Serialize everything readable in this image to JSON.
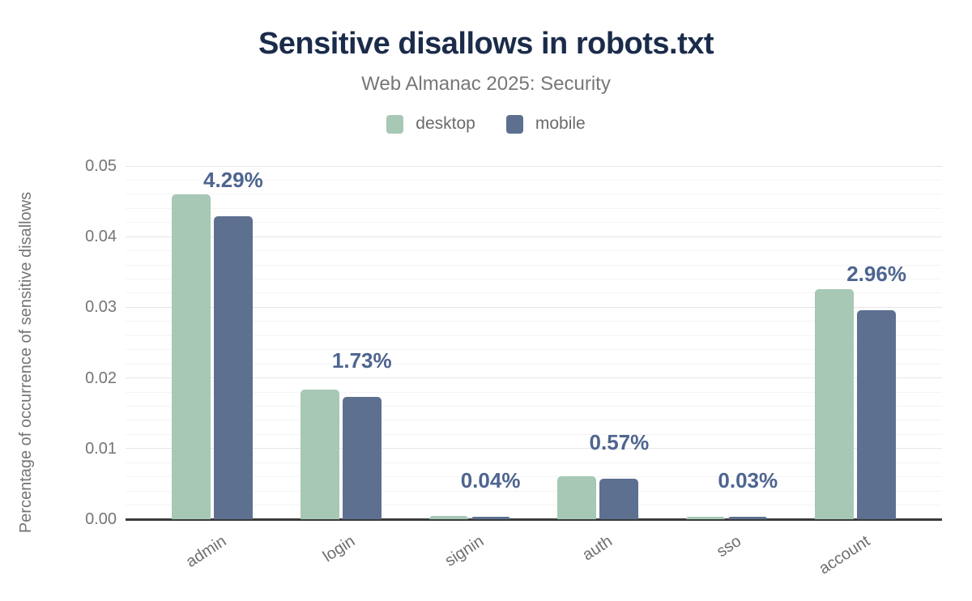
{
  "header": {
    "title": "Sensitive disallows in robots.txt",
    "subtitle": "Web Almanac 2025: Security"
  },
  "legend": {
    "items": [
      {
        "label": "desktop",
        "color": "#a6c8b5"
      },
      {
        "label": "mobile",
        "color": "#5d7090"
      }
    ]
  },
  "chart_data": {
    "type": "bar",
    "title": "Sensitive disallows in robots.txt",
    "subtitle": "Web Almanac 2025: Security",
    "categories": [
      "admin",
      "login",
      "signin",
      "auth",
      "sso",
      "account"
    ],
    "series": [
      {
        "name": "desktop",
        "color": "#a6c8b5",
        "values": [
          0.046,
          0.0183,
          0.0005,
          0.0061,
          0.0003,
          0.0326
        ]
      },
      {
        "name": "mobile",
        "color": "#5d7090",
        "values": [
          0.0429,
          0.0173,
          0.0004,
          0.0057,
          0.0003,
          0.0296
        ]
      }
    ],
    "annotations": {
      "series": "mobile",
      "labels": [
        "4.29%",
        "1.73%",
        "0.04%",
        "0.57%",
        "0.03%",
        "2.96%"
      ]
    },
    "xlabel": "",
    "ylabel": "Percentage of occurrence of sensitive disallows",
    "ylim": [
      0,
      0.05
    ],
    "yticks": [
      "0.00",
      "0.01",
      "0.02",
      "0.03",
      "0.04",
      "0.05"
    ],
    "grid": {
      "major_step": 0.01,
      "minor_step": 0.002,
      "enabled": true
    },
    "legend_position": "top"
  },
  "colors": {
    "title": "#1b2b4a",
    "subtitle": "#777777",
    "axis_text": "#757575",
    "category_text": "#6e6e6e",
    "annotation": "#4e6590",
    "axis_line": "#3b3b3b",
    "grid_major": "#e6e6e6",
    "grid_minor": "#f4f4f4"
  }
}
